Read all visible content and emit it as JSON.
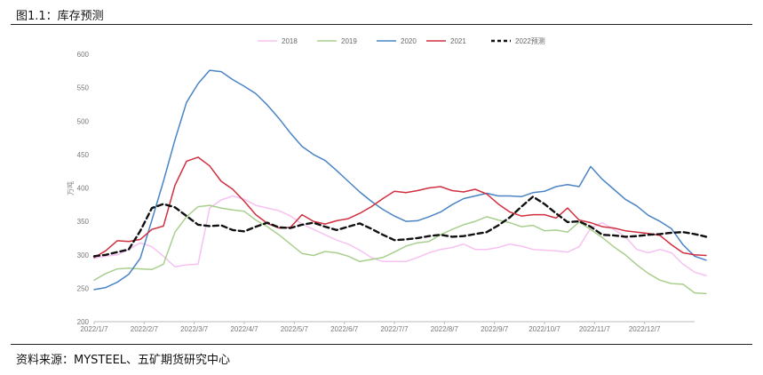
{
  "header": {
    "figure_title": "图1.1：库存预测"
  },
  "footer": {
    "source": "资料来源：MYSTEEL、五矿期货研究中心"
  },
  "chart_data": {
    "type": "line",
    "title": "",
    "xlabel": "",
    "ylabel": "万吨",
    "ylim": [
      200,
      600
    ],
    "yticks": [
      200,
      250,
      300,
      350,
      400,
      450,
      500,
      550,
      600
    ],
    "grid": false,
    "legend_position": "top-center",
    "x_tick_labels": [
      "2022/1/7",
      "2022/2/7",
      "2022/3/7",
      "2022/4/7",
      "2022/5/7",
      "2022/6/7",
      "2022/7/7",
      "2022/8/7",
      "2022/9/7",
      "2022/10/7",
      "2022/11/7",
      "2022/12/7"
    ],
    "x_range": [
      0,
      52
    ],
    "series": [
      {
        "name": "2018",
        "color": "#f6c2f2",
        "dash": "solid",
        "values": [
          295,
          298,
          300,
          308,
          318,
          312,
          298,
          282,
          285,
          286,
          370,
          382,
          388,
          383,
          374,
          370,
          366,
          358,
          346,
          338,
          330,
          322,
          316,
          307,
          296,
          290,
          290,
          290,
          296,
          303,
          308,
          311,
          316,
          308,
          308,
          311,
          316,
          313,
          308,
          307,
          306,
          304,
          312,
          340,
          348,
          338,
          327,
          308,
          303,
          308,
          303,
          286,
          274,
          269
        ]
      },
      {
        "name": "2019",
        "color": "#a9cf8f",
        "dash": "solid",
        "values": [
          262,
          272,
          279,
          280,
          279,
          278,
          286,
          334,
          357,
          372,
          374,
          370,
          367,
          365,
          352,
          342,
          330,
          316,
          302,
          299,
          305,
          303,
          298,
          290,
          293,
          296,
          304,
          313,
          318,
          320,
          330,
          338,
          345,
          350,
          357,
          352,
          348,
          342,
          344,
          336,
          337,
          334,
          349,
          338,
          326,
          312,
          300,
          285,
          272,
          262,
          257,
          256,
          243,
          242
        ]
      },
      {
        "name": "2020",
        "color": "#4a84c5",
        "dash": "solid",
        "values": [
          248,
          251,
          259,
          271,
          295,
          352,
          410,
          472,
          528,
          556,
          576,
          574,
          562,
          552,
          541,
          524,
          504,
          482,
          462,
          450,
          441,
          426,
          410,
          394,
          380,
          368,
          358,
          350,
          351,
          357,
          364,
          375,
          384,
          388,
          392,
          388,
          388,
          387,
          393,
          395,
          402,
          405,
          402,
          432,
          413,
          398,
          383,
          373,
          359,
          350,
          339,
          315,
          298,
          292
        ]
      },
      {
        "name": "2021",
        "color": "#d03040",
        "dash": "solid",
        "values": [
          296,
          306,
          321,
          320,
          323,
          338,
          343,
          404,
          440,
          446,
          433,
          410,
          398,
          380,
          360,
          347,
          340,
          341,
          360,
          350,
          346,
          351,
          354,
          362,
          372,
          384,
          395,
          393,
          396,
          400,
          402,
          396,
          394,
          398,
          391,
          376,
          364,
          358,
          360,
          360,
          355,
          370,
          352,
          348,
          342,
          340,
          336,
          334,
          332,
          329,
          315,
          303,
          300,
          299
        ]
      },
      {
        "name": "2022预测",
        "color": "#111111",
        "dash": "dashed",
        "values": [
          298,
          300,
          304,
          308,
          336,
          370,
          376,
          371,
          358,
          345,
          343,
          344,
          337,
          335,
          342,
          348,
          341,
          340,
          345,
          348,
          342,
          337,
          342,
          347,
          339,
          330,
          322,
          323,
          325,
          328,
          330,
          327,
          328,
          331,
          334,
          344,
          356,
          372,
          387,
          376,
          362,
          349,
          350,
          342,
          330,
          329,
          327,
          328,
          330,
          331,
          333,
          334,
          331,
          327
        ]
      }
    ]
  }
}
